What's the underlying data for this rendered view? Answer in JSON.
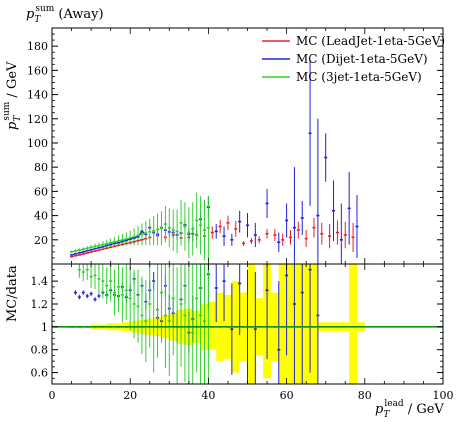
{
  "colors": {
    "leadjet": "#e8202a",
    "dijet": "#2020d8",
    "threejet": "#30d030",
    "band": "#ffff00",
    "unity": "#109010",
    "axis": "#000000"
  },
  "chart_data": [
    {
      "type": "scatter",
      "panel": "main",
      "title_base": "p",
      "title_sub": "T",
      "title_sup": "sum",
      "title_suffix": " (Away)",
      "ylabel_base": "p",
      "ylabel_sub": "T",
      "ylabel_sup": "sum",
      "ylabel_suffix": " / GeV",
      "xlim": [
        0,
        100
      ],
      "ylim": [
        0,
        195
      ],
      "yticks": [
        20,
        40,
        60,
        80,
        100,
        120,
        140,
        160,
        180
      ],
      "legend_position": "top-right",
      "legend": [
        "MC (LeadJet-1eta-5GeV)",
        "MC (Dijet-1eta-5GeV)",
        "MC (3jet-1eta-5GeV)"
      ],
      "data_band_x": [
        5,
        7,
        9,
        11,
        13,
        15,
        17,
        19,
        21,
        23,
        25,
        27,
        29,
        31,
        33,
        35,
        37,
        39,
        41,
        43,
        45,
        47,
        49,
        51,
        53,
        55,
        57,
        59,
        61,
        63,
        65,
        67,
        69,
        71,
        73,
        75,
        77,
        79
      ],
      "series": [
        {
          "name": "MC (LeadJet-1eta-5GeV)",
          "x": [
            5,
            6,
            7,
            8,
            9,
            10,
            11,
            12,
            13,
            14,
            15,
            16,
            17,
            18,
            19,
            20,
            21,
            22,
            23,
            24,
            25,
            27,
            29,
            31,
            33,
            35,
            37,
            39,
            41,
            43,
            45,
            47,
            49,
            51,
            53,
            55,
            57,
            59,
            61,
            63,
            65,
            67,
            69,
            71,
            73,
            75,
            77
          ],
          "y": [
            6.0,
            6.8,
            7.5,
            8.3,
            9.1,
            9.9,
            10.7,
            11.4,
            12.2,
            13.0,
            13.8,
            14.6,
            15.4,
            16.2,
            17.0,
            17.6,
            18.4,
            19.3,
            20.0,
            21.0,
            22.0,
            23.5,
            22.0,
            24.0,
            21.5,
            22.0,
            24.0,
            23.0,
            26.0,
            31.0,
            34.0,
            29.0,
            17.0,
            19.0,
            20.0,
            25.0,
            24.0,
            20.0,
            22.0,
            28.0,
            21.0,
            30.0,
            25.0,
            23.0,
            26.0,
            24.0,
            22.0
          ],
          "err": [
            0.3,
            0.3,
            0.3,
            0.4,
            0.4,
            0.4,
            0.5,
            0.5,
            0.5,
            0.5,
            0.6,
            0.6,
            0.6,
            0.7,
            0.7,
            0.8,
            0.8,
            0.9,
            1.0,
            1.0,
            1.2,
            1.5,
            2.0,
            2.5,
            3.0,
            3.5,
            4.0,
            4.5,
            5.0,
            5.5,
            6.0,
            6.5,
            2.0,
            2.5,
            3.0,
            4.0,
            5.0,
            5.0,
            6.0,
            7.0,
            7.0,
            8.0,
            9.0,
            10.0,
            10.0,
            11.0,
            12.0
          ]
        },
        {
          "name": "MC (Dijet-1eta-5GeV)",
          "x": [
            5,
            6,
            7,
            8,
            9,
            10,
            11,
            12,
            13,
            14,
            15,
            16,
            17,
            18,
            19,
            20,
            21,
            22,
            23,
            24,
            25,
            26,
            27,
            28,
            29,
            30,
            31,
            32,
            33,
            34,
            35,
            36,
            38,
            40,
            42,
            44,
            46,
            48,
            50,
            52,
            55,
            58,
            60,
            62,
            64,
            66,
            68,
            70,
            72,
            74,
            76,
            78
          ],
          "y": [
            7.5,
            8.4,
            9.2,
            10.0,
            10.9,
            11.7,
            12.6,
            13.4,
            14.2,
            15.2,
            16.0,
            17.0,
            17.5,
            18.5,
            19.5,
            20.5,
            21.5,
            22.5,
            27.0,
            24.5,
            30.0,
            26.0,
            24.5,
            30.0,
            28.0,
            26.5,
            26.0,
            24.0,
            25.5,
            32.5,
            24.5,
            25.0,
            37.0,
            47.0,
            27.0,
            23.0,
            20.0,
            35.0,
            32.0,
            24.0,
            50.0,
            18.0,
            36.0,
            30.0,
            38.0,
            108.0,
            40.0,
            88.0,
            44.0,
            20.0,
            46.0,
            31.0
          ],
          "err": [
            0.3,
            0.3,
            0.4,
            0.4,
            0.4,
            0.5,
            0.5,
            0.5,
            0.6,
            0.6,
            0.7,
            0.7,
            0.8,
            0.8,
            0.9,
            1.0,
            1.0,
            1.2,
            1.5,
            1.5,
            2.0,
            2.0,
            2.2,
            2.5,
            3.0,
            3.0,
            3.5,
            4.0,
            4.5,
            5.0,
            5.0,
            6.0,
            7.0,
            9.0,
            6.0,
            8.0,
            5.0,
            9.0,
            10.0,
            10.0,
            12.0,
            8.0,
            14.0,
            50.0,
            14.0,
            60.0,
            80.0,
            20.0,
            25.0,
            30.0,
            30.0,
            26.0
          ]
        },
        {
          "name": "MC (3jet-1eta-5GeV)",
          "x": [
            5,
            6,
            7,
            8,
            9,
            10,
            11,
            12,
            13,
            14,
            15,
            16,
            17,
            18,
            19,
            20,
            21,
            22,
            23,
            24,
            25,
            26,
            27,
            28,
            29,
            30,
            31,
            32,
            33,
            34,
            35,
            36,
            37,
            38,
            39,
            40
          ],
          "y": [
            10.0,
            10.8,
            11.5,
            12.2,
            13.0,
            13.8,
            14.5,
            15.2,
            16.0,
            16.8,
            17.5,
            18.3,
            19.0,
            19.8,
            20.5,
            21.5,
            22.5,
            23.5,
            24.5,
            25.5,
            26.5,
            27.5,
            28.5,
            29.5,
            33.0,
            30.0,
            28.0,
            27.0,
            34.0,
            31.0,
            26.0,
            29.0,
            36.0,
            32.0,
            28.0,
            30.0
          ],
          "err": [
            1.0,
            1.2,
            1.4,
            1.6,
            1.8,
            2.0,
            2.3,
            2.6,
            3.0,
            3.3,
            3.7,
            4.0,
            4.5,
            5.0,
            5.5,
            6.0,
            7.0,
            8.0,
            9.0,
            10.0,
            11.0,
            12.0,
            13.0,
            14.0,
            15.0,
            16.0,
            17.0,
            18.0,
            19.0,
            20.0,
            21.0,
            22.0,
            23.0,
            24.0,
            25.0,
            26.0
          ]
        }
      ]
    },
    {
      "type": "scatter",
      "panel": "ratio",
      "ylabel": "MC/data",
      "xlabel_base": "p",
      "xlabel_sub": "T",
      "xlabel_sup": "lead",
      "xlabel_suffix": " / GeV",
      "xlim": [
        0,
        100
      ],
      "ylim": [
        0.5,
        1.55
      ],
      "xticks": [
        0,
        20,
        40,
        60,
        80,
        100
      ],
      "yticks": [
        0.6,
        0.8,
        1,
        1.2,
        1.4
      ],
      "band": {
        "x": [
          5,
          7,
          9,
          11,
          13,
          15,
          17,
          19,
          21,
          23,
          25,
          27,
          29,
          31,
          33,
          35,
          37,
          39,
          41,
          43,
          45,
          47,
          49,
          51,
          53,
          55,
          57,
          59,
          61,
          63,
          65,
          67,
          69,
          71,
          73,
          75,
          77,
          79
        ],
        "lo": [
          0.99,
          0.99,
          0.99,
          0.98,
          0.98,
          0.97,
          0.97,
          0.96,
          0.95,
          0.94,
          0.93,
          0.92,
          0.9,
          0.88,
          0.85,
          0.84,
          0.86,
          0.8,
          0.8,
          0.7,
          0.72,
          0.6,
          0.7,
          0.5,
          0.75,
          0.55,
          0.7,
          0.5,
          0.5,
          0.5,
          0.5,
          0.5,
          0.96,
          0.96,
          0.96,
          0.96,
          0.5,
          0.96
        ],
        "hi": [
          1.01,
          1.01,
          1.01,
          1.02,
          1.02,
          1.03,
          1.03,
          1.04,
          1.05,
          1.06,
          1.07,
          1.08,
          1.1,
          1.12,
          1.15,
          1.16,
          1.14,
          1.2,
          1.22,
          1.3,
          1.28,
          1.4,
          1.3,
          1.55,
          1.25,
          1.55,
          1.3,
          1.55,
          1.55,
          1.55,
          1.55,
          1.55,
          1.04,
          1.04,
          1.04,
          1.04,
          1.55,
          1.04
        ]
      },
      "series": [
        {
          "name": "MC (LeadJet-1eta-5GeV)",
          "x": [
            5,
            7,
            9,
            11,
            13,
            15,
            17,
            19,
            21,
            23,
            25,
            27,
            29,
            31,
            33,
            35,
            37,
            39,
            41,
            43,
            45,
            47,
            49,
            51,
            53,
            55,
            57,
            59,
            61,
            63,
            65,
            67
          ],
          "y": [
            1.0,
            1.0,
            1.0,
            1.0,
            1.0,
            1.0,
            1.0,
            1.0,
            1.0,
            1.0,
            1.0,
            1.0,
            1.0,
            1.0,
            1.0,
            1.0,
            1.0,
            1.0,
            1.0,
            1.0,
            1.0,
            1.0,
            1.0,
            1.0,
            1.0,
            1.0,
            1.0,
            1.0,
            1.0,
            1.0,
            1.0,
            1.0
          ],
          "err": [
            0,
            0,
            0,
            0,
            0,
            0,
            0,
            0,
            0,
            0,
            0,
            0,
            0,
            0,
            0,
            0,
            0,
            0,
            0,
            0,
            0,
            0,
            0,
            0,
            0,
            0,
            0,
            0,
            0,
            0,
            0,
            0
          ]
        },
        {
          "name": "MC (Dijet-1eta-5GeV)",
          "x": [
            6,
            7,
            8,
            9,
            10,
            11,
            12,
            13,
            14,
            15,
            16,
            17,
            18,
            19,
            20,
            21,
            22,
            23,
            24,
            25,
            26,
            27,
            28,
            29,
            30,
            31,
            32,
            33,
            34,
            35,
            36,
            38,
            40,
            42,
            44,
            46,
            48,
            50,
            52,
            55,
            58,
            60,
            62,
            64,
            66,
            68
          ],
          "y": [
            1.3,
            1.26,
            1.3,
            1.27,
            1.29,
            1.24,
            1.27,
            1.3,
            1.28,
            1.32,
            1.28,
            1.27,
            1.35,
            1.26,
            1.32,
            1.42,
            1.28,
            1.36,
            1.22,
            1.32,
            1.4,
            1.08,
            1.05,
            1.36,
            1.16,
            1.12,
            1.0,
            1.24,
            1.36,
            0.95,
            1.07,
            1.34,
            1.46,
            1.34,
            1.4,
            0.98,
            1.38,
            1.0,
            0.98,
            1.32,
            0.8,
            1.45,
            1.2,
            1.3,
            1.5,
            1.1
          ],
          "err": [
            0.02,
            0.02,
            0.02,
            0.02,
            0.02,
            0.02,
            0.02,
            0.02,
            0.03,
            0.03,
            0.03,
            0.04,
            0.04,
            0.04,
            0.05,
            0.05,
            0.06,
            0.06,
            0.07,
            0.08,
            0.08,
            0.09,
            0.1,
            0.1,
            0.12,
            0.12,
            0.14,
            0.15,
            0.16,
            0.18,
            0.2,
            0.22,
            0.3,
            0.3,
            0.35,
            0.4,
            0.45,
            0.5,
            0.5,
            0.6,
            0.6,
            0.7,
            0.8,
            0.8,
            0.9,
            0.9
          ]
        },
        {
          "name": "MC (3jet-1eta-5GeV)",
          "x": [
            5,
            6,
            7,
            8,
            9,
            10,
            11,
            12,
            13,
            14,
            15,
            16,
            17,
            18,
            19,
            20,
            21,
            22,
            23,
            24,
            25,
            26,
            27,
            28,
            29,
            30,
            31,
            32,
            33,
            34,
            35,
            36,
            37,
            38,
            39,
            40
          ],
          "y": [
            1.62,
            1.64,
            1.5,
            1.48,
            1.5,
            1.44,
            1.45,
            1.42,
            1.4,
            1.36,
            1.4,
            1.3,
            1.35,
            1.28,
            1.32,
            1.25,
            1.2,
            1.18,
            1.1,
            1.05,
            1.2,
            1.0,
            1.15,
            1.3,
            1.1,
            1.05,
            1.25,
            1.0,
            1.2,
            1.1,
            1.0,
            0.95,
            1.25,
            1.1,
            1.05,
            1.0
          ],
          "err": [
            0.05,
            0.06,
            0.07,
            0.08,
            0.09,
            0.1,
            0.12,
            0.13,
            0.15,
            0.16,
            0.18,
            0.2,
            0.22,
            0.24,
            0.26,
            0.28,
            0.3,
            0.32,
            0.34,
            0.36,
            0.38,
            0.4,
            0.42,
            0.44,
            0.46,
            0.48,
            0.5,
            0.52,
            0.55,
            0.58,
            0.6,
            0.62,
            0.65,
            0.68,
            0.7,
            0.72
          ]
        }
      ]
    }
  ]
}
